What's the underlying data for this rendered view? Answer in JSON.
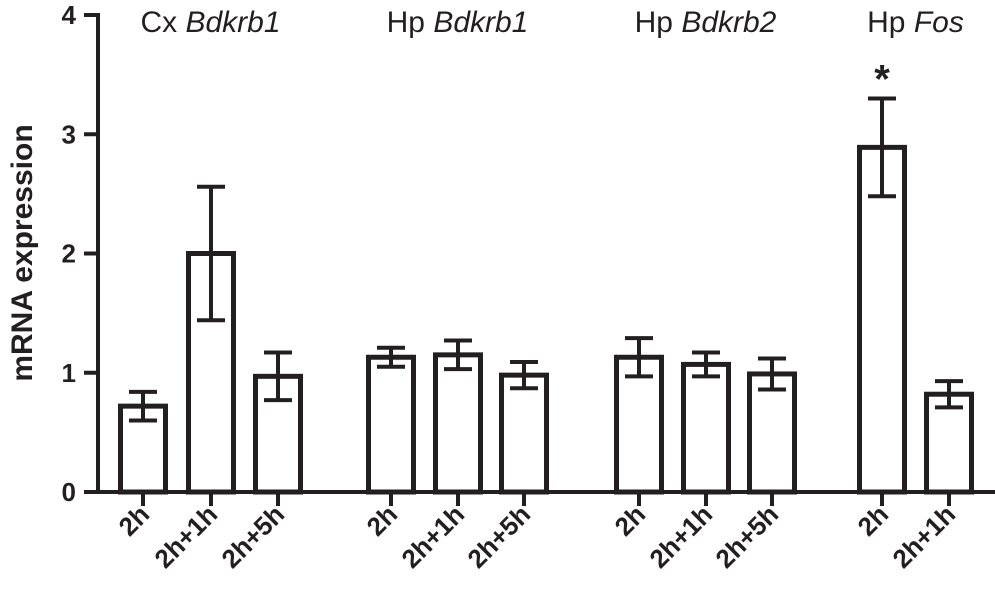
{
  "chart_data": {
    "type": "bar",
    "ylabel": "mRNA expression",
    "ylim": [
      0,
      4
    ],
    "yticks": [
      "0",
      "1",
      "2",
      "3",
      "4"
    ],
    "groups": [
      {
        "label_prefix": "Cx",
        "label_gene": "Bdkrb1",
        "bars": [
          {
            "category": "2h",
            "value": 0.72,
            "err": 0.12,
            "annotation": ""
          },
          {
            "category": "2h+1h",
            "value": 2.0,
            "err": 0.56,
            "annotation": ""
          },
          {
            "category": "2h+5h",
            "value": 0.97,
            "err": 0.2,
            "annotation": ""
          }
        ]
      },
      {
        "label_prefix": "Hp",
        "label_gene": "Bdkrb1",
        "bars": [
          {
            "category": "2h",
            "value": 1.13,
            "err": 0.08,
            "annotation": ""
          },
          {
            "category": "2h+1h",
            "value": 1.15,
            "err": 0.12,
            "annotation": ""
          },
          {
            "category": "2h+5h",
            "value": 0.98,
            "err": 0.11,
            "annotation": ""
          }
        ]
      },
      {
        "label_prefix": "Hp",
        "label_gene": "Bdkrb2",
        "bars": [
          {
            "category": "2h",
            "value": 1.13,
            "err": 0.16,
            "annotation": ""
          },
          {
            "category": "2h+1h",
            "value": 1.07,
            "err": 0.1,
            "annotation": ""
          },
          {
            "category": "2h+5h",
            "value": 0.99,
            "err": 0.13,
            "annotation": ""
          }
        ]
      },
      {
        "label_prefix": "Hp",
        "label_gene": "Fos",
        "bars": [
          {
            "category": "2h",
            "value": 2.89,
            "err": 0.41,
            "annotation": "*"
          },
          {
            "category": "2h+1h",
            "value": 0.82,
            "err": 0.11,
            "annotation": ""
          }
        ]
      }
    ]
  }
}
